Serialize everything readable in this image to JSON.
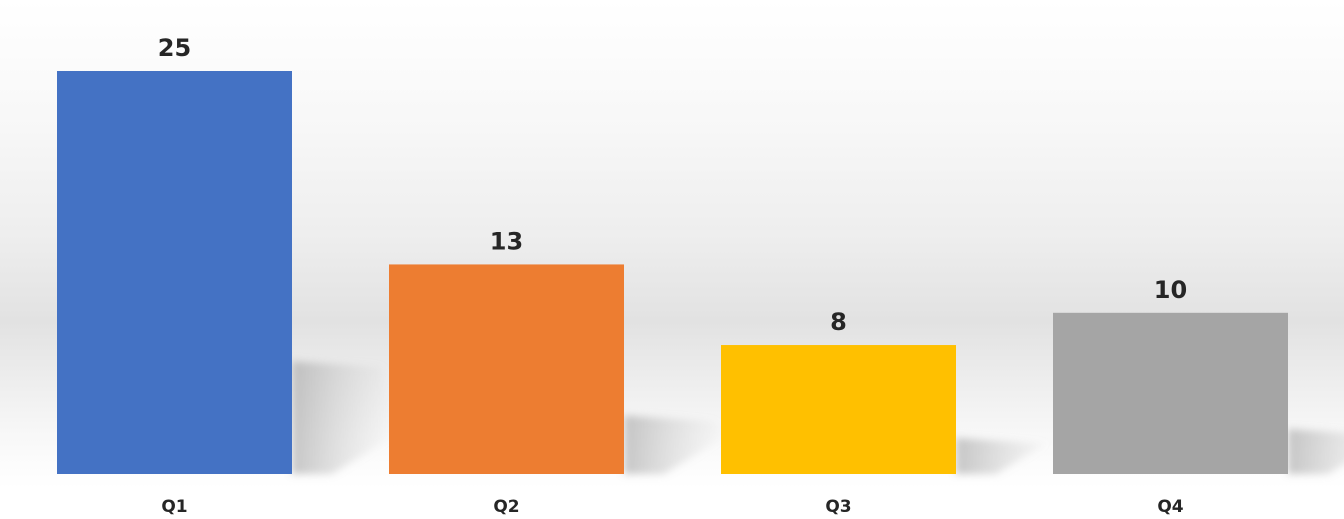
{
  "chart_data": {
    "type": "bar",
    "title": "",
    "xlabel": "",
    "ylabel": "",
    "categories": [
      "Q1",
      "Q2",
      "Q3",
      "Q4"
    ],
    "values": [
      25,
      13,
      8,
      10
    ],
    "data_labels": [
      "25",
      "13",
      "8",
      "10"
    ],
    "colors": [
      "#4472C4",
      "#ED7D31",
      "#FFC000",
      "#A5A5A5"
    ],
    "ylim": [
      0,
      25
    ],
    "grid": false,
    "legend": "none",
    "bar_shadow": true
  }
}
